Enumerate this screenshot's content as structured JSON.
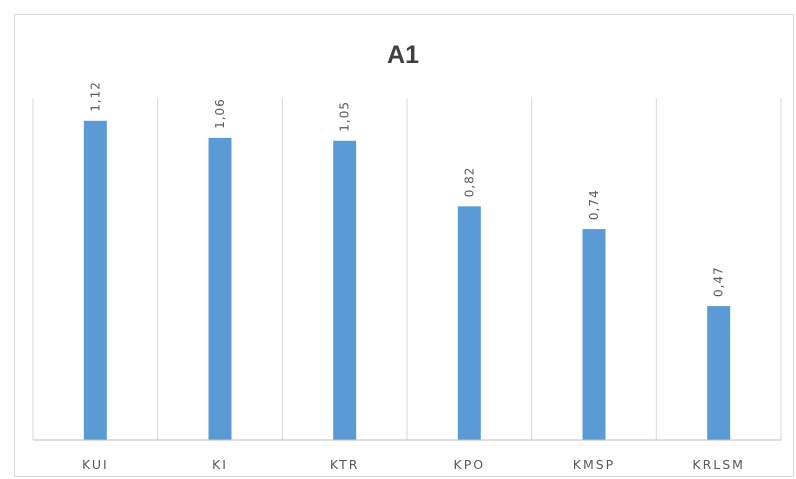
{
  "chart_data": {
    "type": "bar",
    "title": "A1",
    "categories": [
      "KUI",
      "KI",
      "KTR",
      "KPO",
      "KMSP",
      "KRLSM"
    ],
    "values": [
      1.12,
      1.06,
      1.05,
      0.82,
      0.74,
      0.47
    ],
    "value_labels": [
      "1,12",
      "1,06",
      "1,05",
      "0,82",
      "0,74",
      "0,47"
    ],
    "xlabel": "",
    "ylabel": "",
    "ylim": [
      0,
      1.2
    ],
    "y_axis_visible": false,
    "vertical_gridlines": true,
    "legend": "none",
    "bar_color": "#5b9bd5"
  }
}
